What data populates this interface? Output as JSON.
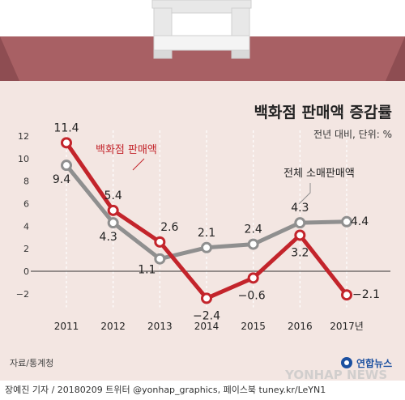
{
  "colors": {
    "background": "#f3e6e2",
    "bag_frame": "#a86064",
    "handle": "#e6e6e6",
    "dept_store_line": "#c3242b",
    "retail_line": "#8f8f8f",
    "axis": "#333333"
  },
  "header": {
    "title": "백화점 판매액 증감률",
    "unit": "전년 대비, 단위: %"
  },
  "chart_data": {
    "type": "line",
    "title": "백화점 판매액 증감률",
    "subtitle": "전년 대비, 단위: %",
    "x": [
      "2011",
      "2012",
      "2013",
      "2014",
      "2015",
      "2016",
      "2017년"
    ],
    "ylim": [
      -3,
      13
    ],
    "yticks": [
      "12",
      "10",
      "8",
      "6",
      "4",
      "2",
      "0",
      "−2"
    ],
    "ytick_values": [
      12,
      10,
      8,
      6,
      4,
      2,
      0,
      -2
    ],
    "grid": "vertical-dashed",
    "series": [
      {
        "name": "백화점 판매액",
        "color": "#c3242b",
        "values": [
          11.4,
          5.4,
          2.6,
          -2.4,
          -0.6,
          3.2,
          -2.1
        ],
        "labels": [
          "11.4",
          "5.4",
          "2.6",
          "−2.4",
          "−0.6",
          "3.2",
          "−2.1"
        ]
      },
      {
        "name": "전체 소매판매액",
        "color": "#8f8f8f",
        "values": [
          9.4,
          4.3,
          1.1,
          2.1,
          2.4,
          4.3,
          4.4
        ],
        "labels": [
          "9.4",
          "4.3",
          "1.1",
          "2.1",
          "2.4",
          "4.3",
          "4.4"
        ]
      }
    ]
  },
  "source": "자료/통계청",
  "logo": "연합뉴스",
  "watermark": "YONHAP NEWS",
  "footer": "장예진 기자 / 20180209 트위터 @yonhap_graphics, 페이스북 tuney.kr/LeYN1"
}
